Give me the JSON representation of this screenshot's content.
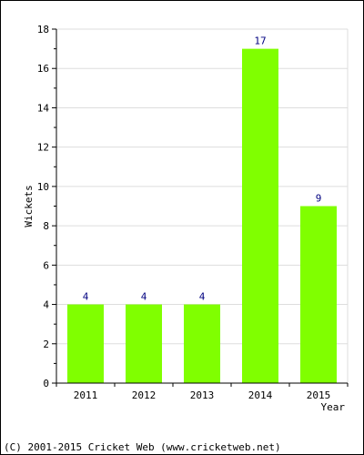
{
  "chart_data": {
    "type": "bar",
    "categories": [
      "2011",
      "2012",
      "2013",
      "2014",
      "2015"
    ],
    "values": [
      4,
      4,
      4,
      17,
      9
    ],
    "title": "",
    "xlabel": "Year",
    "ylabel": "Wickets",
    "ylim": [
      0,
      18
    ],
    "yticks": [
      0,
      2,
      4,
      6,
      8,
      10,
      12,
      14,
      16,
      18
    ],
    "grid": true,
    "bar_color": "#80ff00",
    "data_label_color": "#000080"
  },
  "footer": "(C) 2001-2015 Cricket Web (www.cricketweb.net)"
}
